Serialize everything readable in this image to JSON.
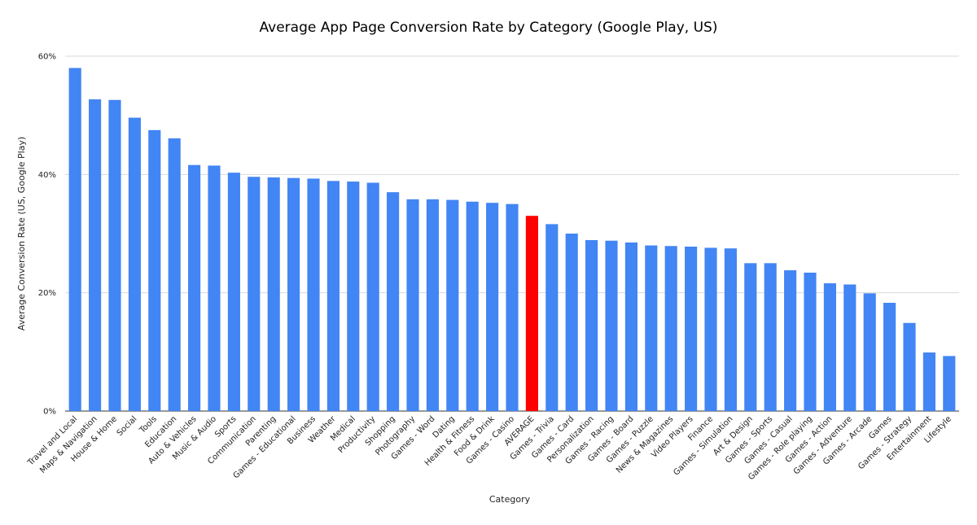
{
  "chart_data": {
    "type": "bar",
    "title": "Average App Page Conversion Rate by Category (Google Play, US)",
    "xlabel": "Category",
    "ylabel": "Average Conversion Rate (US, Google Play)",
    "ylim": [
      0,
      60
    ],
    "yticks": [
      0,
      20,
      40,
      60
    ],
    "ytick_labels": [
      "0%",
      "20%",
      "40%",
      "60%"
    ],
    "grid": true,
    "legend": "none",
    "bar_color": "#4285f4",
    "highlight_color": "#ff0000",
    "highlight_category": "AVERAGE",
    "categories": [
      "Travel and Local",
      "Maps & Navigation",
      "House & Home",
      "Social",
      "Tools",
      "Education",
      "Auto & Vehicles",
      "Music & Audio",
      "Sports",
      "Communication",
      "Parenting",
      "Games - Educational",
      "Business",
      "Weather",
      "Medical",
      "Productivity",
      "Shopping",
      "Photography",
      "Games - Word",
      "Dating",
      "Health & Fitness",
      "Food & Drink",
      "Games - Casino",
      "AVERAGE",
      "Games - Trivia",
      "Games - Card",
      "Personalization",
      "Games - Racing",
      "Games - Board",
      "Games - Puzzle",
      "News & Magazines",
      "Video Players",
      "Finance",
      "Games - Simulation",
      "Art & Design",
      "Games - Sports",
      "Games - Casual",
      "Games - Role playing",
      "Games - Action",
      "Games - Adventure",
      "Games - Arcade",
      "Games",
      "Games - Strategy",
      "Entertainment",
      "Lifestyle"
    ],
    "values": [
      58.0,
      52.7,
      52.6,
      49.6,
      47.5,
      46.1,
      41.6,
      41.5,
      40.3,
      39.6,
      39.5,
      39.4,
      39.3,
      38.9,
      38.8,
      38.6,
      37.0,
      35.8,
      35.8,
      35.7,
      35.4,
      35.2,
      35.0,
      33.0,
      31.6,
      30.0,
      28.9,
      28.8,
      28.5,
      28.0,
      27.9,
      27.8,
      27.6,
      27.5,
      25.0,
      25.0,
      23.8,
      23.4,
      21.6,
      21.4,
      19.9,
      18.3,
      14.9,
      9.9,
      9.3
    ]
  }
}
